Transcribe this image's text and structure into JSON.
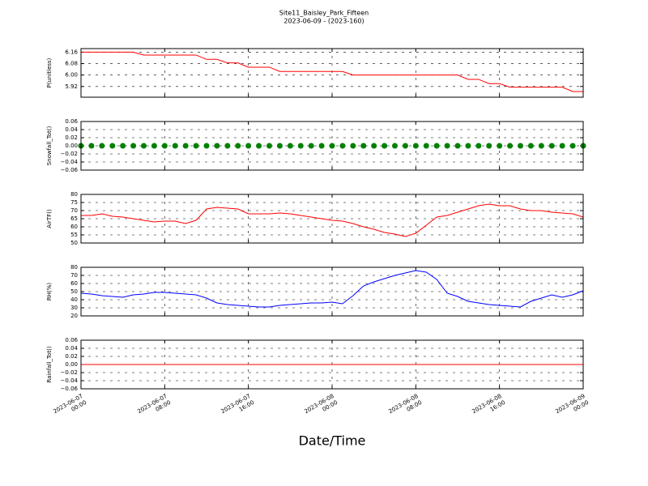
{
  "title": "Site11_Baisley_Park_Fifteen",
  "subtitle": "2023-06-09 - (2023-160)",
  "x_axis": {
    "label": "Date/Time",
    "xlim": [
      "2023-06-07 00:00",
      "2023-06-09 00:00"
    ],
    "xticks": [
      {
        "value": "2023-06-07 00:00",
        "label": "2023-06-07\n00:00"
      },
      {
        "value": "2023-06-07 08:00",
        "label": "2023-06-07\n08:00"
      },
      {
        "value": "2023-06-07 16:00",
        "label": "2023-06-07\n16:00"
      },
      {
        "value": "2023-06-08 00:00",
        "label": "2023-06-08\n00:00"
      },
      {
        "value": "2023-06-08 08:00",
        "label": "2023-06-08\n08:00"
      },
      {
        "value": "2023-06-08 16:00",
        "label": "2023-06-08\n16:00"
      },
      {
        "value": "2023-06-09 00:00",
        "label": "2023-06-09\n00:00"
      }
    ]
  },
  "chart_data": [
    {
      "type": "line",
      "y_label": "P(unitless)",
      "color": "#ff0000",
      "grid": true,
      "ylim": [
        5.845,
        6.185
      ],
      "yticks": [
        5.92,
        {
          "value": 6,
          "label": "6.00"
        },
        6.08,
        6.16
      ],
      "x": [
        "2023-06-07 00:00",
        "2023-06-07 01:00",
        "2023-06-07 02:00",
        "2023-06-07 03:00",
        "2023-06-07 04:00",
        "2023-06-07 05:00",
        "2023-06-07 06:00",
        "2023-06-07 07:00",
        "2023-06-07 08:00",
        "2023-06-07 09:00",
        "2023-06-07 10:00",
        "2023-06-07 11:00",
        "2023-06-07 12:00",
        "2023-06-07 13:00",
        "2023-06-07 14:00",
        "2023-06-07 15:00",
        "2023-06-07 16:00",
        "2023-06-07 17:00",
        "2023-06-07 18:00",
        "2023-06-07 19:00",
        "2023-06-07 20:00",
        "2023-06-07 21:00",
        "2023-06-07 22:00",
        "2023-06-07 23:00",
        "2023-06-08 00:00",
        "2023-06-08 01:00",
        "2023-06-08 02:00",
        "2023-06-08 03:00",
        "2023-06-08 04:00",
        "2023-06-08 05:00",
        "2023-06-08 06:00",
        "2023-06-08 07:00",
        "2023-06-08 08:00",
        "2023-06-08 09:00",
        "2023-06-08 10:00",
        "2023-06-08 11:00",
        "2023-06-08 12:00",
        "2023-06-08 13:00",
        "2023-06-08 14:00",
        "2023-06-08 15:00",
        "2023-06-08 16:00",
        "2023-06-08 17:00",
        "2023-06-08 18:00",
        "2023-06-08 19:00",
        "2023-06-08 20:00",
        "2023-06-08 21:00",
        "2023-06-08 22:00",
        "2023-06-08 23:00",
        "2023-06-09 00:00"
      ],
      "values": [
        6.16,
        6.16,
        6.16,
        6.16,
        6.16,
        6.16,
        6.14,
        6.14,
        6.14,
        6.14,
        6.14,
        6.14,
        6.11,
        6.11,
        6.085,
        6.085,
        6.055,
        6.055,
        6.055,
        6.025,
        6.025,
        6.025,
        6.025,
        6.025,
        6.025,
        6.025,
        6.0,
        6.0,
        6.0,
        6.0,
        6.0,
        6.0,
        6.0,
        6.0,
        6.0,
        6.0,
        6.0,
        5.97,
        5.97,
        5.94,
        5.94,
        5.915,
        5.915,
        5.915,
        5.915,
        5.915,
        5.915,
        5.885,
        5.885
      ]
    },
    {
      "type": "scatter",
      "y_label": "Snowfall_Tot()",
      "color": "#008000",
      "grid": true,
      "ylim": [
        -0.06,
        0.06
      ],
      "yticks": [
        {
          "value": -0.06,
          "label": "−0.06"
        },
        {
          "value": -0.04,
          "label": "−0.04"
        },
        {
          "value": -0.02,
          "label": "−0.02"
        },
        {
          "value": 0,
          "label": "0.00"
        },
        0.02,
        0.04,
        0.06
      ],
      "x": [
        "2023-06-07 00:00",
        "2023-06-07 01:00",
        "2023-06-07 02:00",
        "2023-06-07 03:00",
        "2023-06-07 04:00",
        "2023-06-07 05:00",
        "2023-06-07 06:00",
        "2023-06-07 07:00",
        "2023-06-07 08:00",
        "2023-06-07 09:00",
        "2023-06-07 10:00",
        "2023-06-07 11:00",
        "2023-06-07 12:00",
        "2023-06-07 13:00",
        "2023-06-07 14:00",
        "2023-06-07 15:00",
        "2023-06-07 16:00",
        "2023-06-07 17:00",
        "2023-06-07 18:00",
        "2023-06-07 19:00",
        "2023-06-07 20:00",
        "2023-06-07 21:00",
        "2023-06-07 22:00",
        "2023-06-07 23:00",
        "2023-06-08 00:00",
        "2023-06-08 01:00",
        "2023-06-08 02:00",
        "2023-06-08 03:00",
        "2023-06-08 04:00",
        "2023-06-08 05:00",
        "2023-06-08 06:00",
        "2023-06-08 07:00",
        "2023-06-08 08:00",
        "2023-06-08 09:00",
        "2023-06-08 10:00",
        "2023-06-08 11:00",
        "2023-06-08 12:00",
        "2023-06-08 13:00",
        "2023-06-08 14:00",
        "2023-06-08 15:00",
        "2023-06-08 16:00",
        "2023-06-08 17:00",
        "2023-06-08 18:00",
        "2023-06-08 19:00",
        "2023-06-08 20:00",
        "2023-06-08 21:00",
        "2023-06-08 22:00",
        "2023-06-08 23:00",
        "2023-06-09 00:00"
      ],
      "values": [
        0,
        0,
        0,
        0,
        0,
        0,
        0,
        0,
        0,
        0,
        0,
        0,
        0,
        0,
        0,
        0,
        0,
        0,
        0,
        0,
        0,
        0,
        0,
        0,
        0,
        0,
        0,
        0,
        0,
        0,
        0,
        0,
        0,
        0,
        0,
        0,
        0,
        0,
        0,
        0,
        0,
        0,
        0,
        0,
        0,
        0,
        0,
        0,
        0
      ]
    },
    {
      "type": "line",
      "y_label": "AirTF()",
      "color": "#ff0000",
      "grid": true,
      "ylim": [
        50,
        80
      ],
      "yticks": [
        50,
        55,
        60,
        65,
        70,
        75,
        80
      ],
      "x": [
        "2023-06-07 00:00",
        "2023-06-07 01:00",
        "2023-06-07 02:00",
        "2023-06-07 03:00",
        "2023-06-07 04:00",
        "2023-06-07 05:00",
        "2023-06-07 06:00",
        "2023-06-07 07:00",
        "2023-06-07 08:00",
        "2023-06-07 09:00",
        "2023-06-07 10:00",
        "2023-06-07 11:00",
        "2023-06-07 12:00",
        "2023-06-07 13:00",
        "2023-06-07 14:00",
        "2023-06-07 15:00",
        "2023-06-07 16:00",
        "2023-06-07 17:00",
        "2023-06-07 18:00",
        "2023-06-07 19:00",
        "2023-06-07 20:00",
        "2023-06-07 21:00",
        "2023-06-07 22:00",
        "2023-06-07 23:00",
        "2023-06-08 00:00",
        "2023-06-08 01:00",
        "2023-06-08 02:00",
        "2023-06-08 03:00",
        "2023-06-08 04:00",
        "2023-06-08 05:00",
        "2023-06-08 06:00",
        "2023-06-08 07:00",
        "2023-06-08 08:00",
        "2023-06-08 09:00",
        "2023-06-08 10:00",
        "2023-06-08 11:00",
        "2023-06-08 12:00",
        "2023-06-08 13:00",
        "2023-06-08 14:00",
        "2023-06-08 15:00",
        "2023-06-08 16:00",
        "2023-06-08 17:00",
        "2023-06-08 18:00",
        "2023-06-08 19:00",
        "2023-06-08 20:00",
        "2023-06-08 21:00",
        "2023-06-08 22:00",
        "2023-06-08 23:00",
        "2023-06-09 00:00"
      ],
      "values": [
        67,
        67,
        68,
        66.5,
        66,
        65,
        64,
        63,
        63.5,
        63.5,
        62,
        64,
        71,
        72,
        71.5,
        71,
        68,
        68,
        68,
        68.5,
        68,
        67,
        66,
        65,
        64,
        63.5,
        62,
        60,
        58.5,
        56.5,
        55.5,
        54,
        56,
        61,
        66,
        67,
        69,
        71,
        73,
        74,
        73,
        73,
        71,
        70,
        70,
        69,
        68.5,
        68,
        66
      ]
    },
    {
      "type": "line",
      "y_label": "RH(%)",
      "color": "#0000ff",
      "grid": true,
      "ylim": [
        20,
        80
      ],
      "yticks": [
        20,
        30,
        40,
        50,
        60,
        70,
        80
      ],
      "x": [
        "2023-06-07 00:00",
        "2023-06-07 01:00",
        "2023-06-07 02:00",
        "2023-06-07 03:00",
        "2023-06-07 04:00",
        "2023-06-07 05:00",
        "2023-06-07 06:00",
        "2023-06-07 07:00",
        "2023-06-07 08:00",
        "2023-06-07 09:00",
        "2023-06-07 10:00",
        "2023-06-07 11:00",
        "2023-06-07 12:00",
        "2023-06-07 13:00",
        "2023-06-07 14:00",
        "2023-06-07 15:00",
        "2023-06-07 16:00",
        "2023-06-07 17:00",
        "2023-06-07 18:00",
        "2023-06-07 19:00",
        "2023-06-07 20:00",
        "2023-06-07 21:00",
        "2023-06-07 22:00",
        "2023-06-07 23:00",
        "2023-06-08 00:00",
        "2023-06-08 01:00",
        "2023-06-08 02:00",
        "2023-06-08 03:00",
        "2023-06-08 04:00",
        "2023-06-08 05:00",
        "2023-06-08 06:00",
        "2023-06-08 07:00",
        "2023-06-08 08:00",
        "2023-06-08 09:00",
        "2023-06-08 10:00",
        "2023-06-08 11:00",
        "2023-06-08 12:00",
        "2023-06-08 13:00",
        "2023-06-08 14:00",
        "2023-06-08 15:00",
        "2023-06-08 16:00",
        "2023-06-08 17:00",
        "2023-06-08 18:00",
        "2023-06-08 19:00",
        "2023-06-08 20:00",
        "2023-06-08 21:00",
        "2023-06-08 22:00",
        "2023-06-08 23:00",
        "2023-06-09 00:00"
      ],
      "values": [
        48,
        47,
        45,
        44,
        43,
        46,
        47,
        49,
        49,
        48,
        47,
        46,
        42,
        36,
        34,
        33,
        32,
        31,
        31,
        33,
        34,
        35,
        36,
        36,
        37,
        35,
        45,
        57,
        62,
        66,
        70,
        73,
        76,
        74,
        65,
        48,
        44,
        38,
        36,
        34,
        33,
        32,
        31,
        38,
        42,
        46,
        43,
        46,
        51
      ]
    },
    {
      "type": "line",
      "y_label": "Rainfall_Tot()",
      "color": "#ff0000",
      "grid": true,
      "ylim": [
        -0.06,
        0.06
      ],
      "yticks": [
        {
          "value": -0.06,
          "label": "−0.06"
        },
        {
          "value": -0.04,
          "label": "−0.04"
        },
        {
          "value": -0.02,
          "label": "−0.02"
        },
        {
          "value": 0,
          "label": "0.00"
        },
        0.02,
        0.04,
        0.06
      ],
      "x": [
        "2023-06-07 00:00",
        "2023-06-07 01:00",
        "2023-06-07 02:00",
        "2023-06-07 03:00",
        "2023-06-07 04:00",
        "2023-06-07 05:00",
        "2023-06-07 06:00",
        "2023-06-07 07:00",
        "2023-06-07 08:00",
        "2023-06-07 09:00",
        "2023-06-07 10:00",
        "2023-06-07 11:00",
        "2023-06-07 12:00",
        "2023-06-07 13:00",
        "2023-06-07 14:00",
        "2023-06-07 15:00",
        "2023-06-07 16:00",
        "2023-06-07 17:00",
        "2023-06-07 18:00",
        "2023-06-07 19:00",
        "2023-06-07 20:00",
        "2023-06-07 21:00",
        "2023-06-07 22:00",
        "2023-06-07 23:00",
        "2023-06-08 00:00",
        "2023-06-08 01:00",
        "2023-06-08 02:00",
        "2023-06-08 03:00",
        "2023-06-08 04:00",
        "2023-06-08 05:00",
        "2023-06-08 06:00",
        "2023-06-08 07:00",
        "2023-06-08 08:00",
        "2023-06-08 09:00",
        "2023-06-08 10:00",
        "2023-06-08 11:00",
        "2023-06-08 12:00",
        "2023-06-08 13:00",
        "2023-06-08 14:00",
        "2023-06-08 15:00",
        "2023-06-08 16:00",
        "2023-06-08 17:00",
        "2023-06-08 18:00",
        "2023-06-08 19:00",
        "2023-06-08 20:00",
        "2023-06-08 21:00",
        "2023-06-08 22:00",
        "2023-06-08 23:00",
        "2023-06-09 00:00"
      ],
      "values": [
        0,
        0,
        0,
        0,
        0,
        0,
        0,
        0,
        0,
        0,
        0,
        0,
        0,
        0,
        0,
        0,
        0,
        0,
        0,
        0,
        0,
        0,
        0,
        0,
        0,
        0,
        0,
        0,
        0,
        0,
        0,
        0,
        0,
        0,
        0,
        0,
        0,
        0,
        0,
        0,
        0,
        0,
        0,
        0,
        0,
        0,
        0,
        0,
        0
      ]
    }
  ]
}
